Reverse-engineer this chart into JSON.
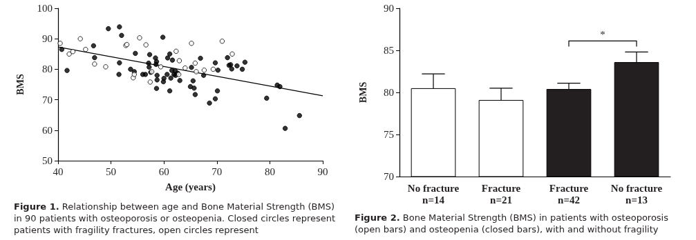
{
  "chart_data": [
    {
      "type": "scatter",
      "xlabel": "Age (years)",
      "ylabel": "BMS",
      "xlim": [
        40,
        90
      ],
      "xticks": [
        40,
        50,
        60,
        70,
        80,
        90
      ],
      "ylim": [
        50,
        100
      ],
      "yticks": [
        50,
        60,
        70,
        80,
        90,
        100
      ],
      "grid": false,
      "marker": "circle",
      "annotations": [
        "Figure 1.",
        "Relationship between age and Bone Material Strength (BMS) in 90 patients with osteoporosis or osteopenia. Closed circles represent patients with fragility fractures, open circles represent"
      ],
      "series": [
        {
          "color": "#000000",
          "x": [
            40.7,
            41.7,
            46.7,
            46.9,
            49.5,
            51.6,
            52.0,
            51.6,
            51.5,
            53.7,
            54.4,
            54.6,
            56.0,
            56.5,
            57.1,
            57.2,
            57.3,
            57.5,
            58.4,
            58.6,
            58.5,
            58.7,
            58.7,
            58.6,
            59.8,
            59.9,
            60.0,
            60.6,
            60.7,
            61.1,
            61.1,
            61.3,
            61.6,
            61.5,
            61.9,
            62.1,
            62.2,
            62.6,
            63.0,
            65.2,
            65.5,
            65.0,
            65.7,
            65.9,
            66.9,
            67.5,
            68.6,
            69.7,
            69.7,
            70.2,
            70.1,
            72.0,
            72.3,
            72.6,
            72.8,
            73.8,
            74.8,
            75.3,
            79.4,
            81.4,
            81.9,
            82.9,
            85.6
          ],
          "values": [
            86.5,
            79.6,
            87.7,
            83.8,
            93.3,
            93.9,
            91.1,
            82.1,
            78.3,
            80.0,
            79.2,
            85.2,
            78.3,
            78.3,
            82.0,
            80.7,
            84.8,
            79.0,
            83.7,
            82.5,
            81.6,
            78.0,
            76.5,
            73.7,
            90.5,
            75.9,
            77.0,
            78.3,
            83.7,
            85.0,
            72.9,
            77.1,
            83.0,
            79.6,
            78.3,
            79.5,
            78.0,
            78.7,
            76.3,
            80.6,
            76.2,
            74.3,
            73.8,
            71.7,
            83.6,
            78.0,
            68.9,
            82.1,
            70.3,
            79.7,
            72.9,
            83.8,
            81.3,
            81.5,
            80.1,
            81.1,
            80.0,
            82.3,
            70.5,
            74.8,
            74.3,
            60.6,
            64.8
          ]
        },
        {
          "color": "#ffffff",
          "x": [
            40.4,
            42.1,
            42.8,
            44.2,
            45.2,
            46.9,
            49.0,
            52.8,
            53.0,
            54.2,
            54.4,
            55.4,
            56.6,
            57.4,
            57.7,
            59.4,
            62.3,
            62.9,
            62.8,
            64.0,
            65.2,
            65.9,
            66.1,
            67.6,
            69.3,
            71.0,
            72.9
          ],
          "values": [
            88.5,
            85.0,
            85.8,
            90.0,
            86.5,
            81.7,
            80.8,
            87.8,
            88.1,
            77.2,
            78.3,
            90.3,
            88.0,
            75.8,
            79.2,
            80.8,
            85.9,
            82.8,
            78.3,
            80.4,
            88.5,
            82.0,
            79.2,
            79.7,
            80.0,
            89.2,
            85.0
          ]
        },
        {
          "type": "line",
          "color": "#000000",
          "marker": "none",
          "x": [
            40,
            90
          ],
          "values": [
            87.3,
            71.3
          ]
        }
      ]
    },
    {
      "type": "bar",
      "ylabel": "BMS",
      "categories": [
        "No fracture\nn=14",
        "Fracture\nn=21",
        "Fracture\nn=42",
        "No fracture\nn=13"
      ],
      "values": [
        80.5,
        79.1,
        80.4,
        83.6
      ],
      "colors": [
        "#ffffff",
        "#ffffff",
        "#231f20",
        "#231f20"
      ],
      "errors": [
        [
          80.5,
          82.2
        ],
        [
          79.1,
          80.5
        ],
        [
          80.4,
          81.1
        ],
        [
          83.6,
          84.8
        ]
      ],
      "ylim": [
        70,
        90
      ],
      "yticks": [
        70,
        75,
        80,
        85,
        90
      ],
      "grid": false,
      "annotations": [
        "*",
        "Figure 2.",
        "Bone Material Strength (BMS) in patients with osteoporosis (open bars) and osteopenia (closed bars), with and without fragility"
      ]
    }
  ]
}
